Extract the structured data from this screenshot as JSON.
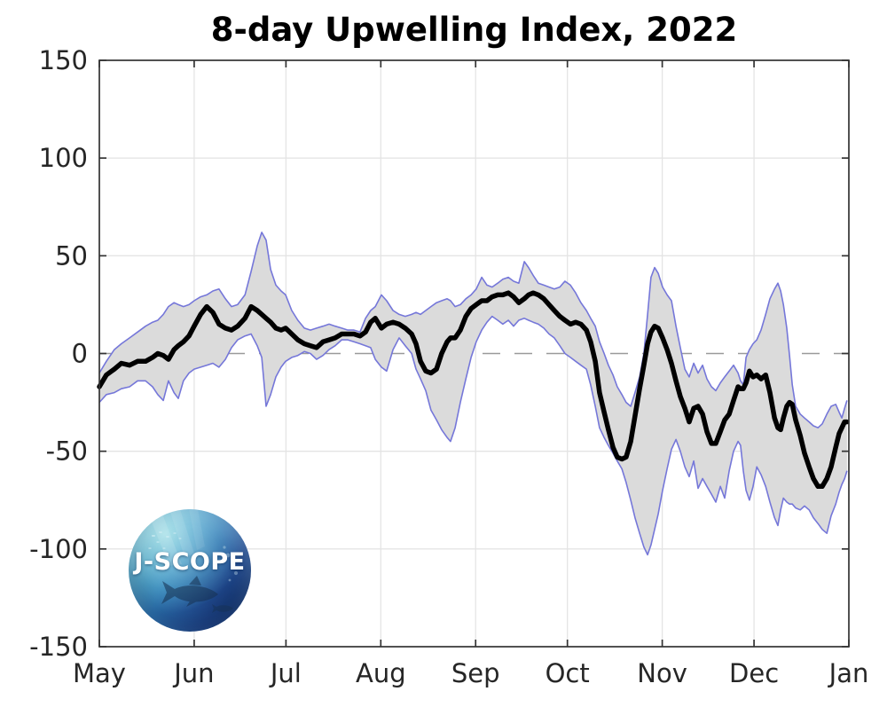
{
  "logo": {
    "text": "J-SCOPE"
  },
  "chart_data": {
    "type": "line",
    "title": "8-day Upwelling Index, 2022",
    "xlabel": "",
    "ylabel": "",
    "x_axis": {
      "unit": "days since May 1",
      "range": [
        0,
        245
      ],
      "tick_days": [
        0,
        31,
        61,
        92,
        123,
        153,
        184,
        214,
        245
      ],
      "tick_labels": [
        "May",
        "Jun",
        "Jul",
        "Aug",
        "Sep",
        "Oct",
        "Nov",
        "Dec",
        "Jan"
      ]
    },
    "y_axis": {
      "range": [
        -150,
        150
      ],
      "ticks": [
        -150,
        -100,
        -50,
        0,
        50,
        100,
        150
      ]
    },
    "grid": "on",
    "zero_line": "dashed",
    "legend": "none",
    "style": {
      "mean_color": "#000000",
      "mean_width": 5.5,
      "bound_color": "#7577d9",
      "bound_width": 1.6,
      "band_fill": "#dbdbdb",
      "grid_color": "#e4e4e4",
      "zero_color": "#9a9a9a",
      "axis_color": "#333333",
      "label_color": "#262626",
      "tick_len": 8
    },
    "days": [
      0,
      2.3,
      4.9,
      7.2,
      9.9,
      12.5,
      15.1,
      17.4,
      19.1,
      20.9,
      22.6,
      24.4,
      25.8,
      27.5,
      29.3,
      31,
      33.1,
      35.1,
      37.1,
      39.1,
      41.2,
      43.2,
      45.2,
      47.6,
      49.6,
      51.6,
      53.1,
      54.5,
      56,
      57.7,
      59.4,
      60.9,
      62.9,
      64.9,
      67,
      69,
      71,
      73.1,
      75.1,
      77.1,
      79.2,
      81.2,
      83.2,
      85.2,
      87,
      88.7,
      90.2,
      92.2,
      93.9,
      96,
      98,
      100,
      102.1,
      103.5,
      105,
      106.7,
      108.4,
      110.2,
      111.9,
      113.7,
      114.8,
      116.3,
      118,
      119.8,
      121.5,
      123.2,
      125,
      126.7,
      128.4,
      130.2,
      131.9,
      133.7,
      135.4,
      137.1,
      138.9,
      140.3,
      141.8,
      143.5,
      145.3,
      147,
      148.7,
      150.5,
      152.2,
      154,
      155.7,
      157.4,
      159.2,
      160.6,
      162.1,
      163.5,
      165,
      166.4,
      167.9,
      169.3,
      170.8,
      172.2,
      173.7,
      175.1,
      176.6,
      178,
      179.2,
      180.3,
      181.5,
      182.7,
      184.1,
      185.6,
      187,
      188.5,
      189.9,
      191.4,
      192.8,
      194.3,
      195.7,
      197.2,
      198.6,
      200.1,
      201.5,
      203,
      204.4,
      205.9,
      207.3,
      208.8,
      209.6,
      210.5,
      211.4,
      212.5,
      213.7,
      214.9,
      216.3,
      217.8,
      219.2,
      220.7,
      221.8,
      222.7,
      223.6,
      224.7,
      225.6,
      226.5,
      227.6,
      229.1,
      230.5,
      232,
      233.4,
      234.9,
      236.3,
      237.8,
      239.2,
      240.7,
      241.8,
      242.7,
      243.6,
      244.4
    ],
    "series": [
      {
        "name": "ensemble mean",
        "values": [
          -17,
          -11,
          -8,
          -5,
          -6,
          -4,
          -4,
          -2,
          0,
          -1,
          -3,
          2,
          4,
          6,
          9,
          14,
          20,
          24,
          21,
          15,
          13,
          12,
          14,
          18,
          24,
          22,
          20,
          18,
          16,
          13,
          12,
          13,
          10,
          7,
          5,
          4,
          3,
          6,
          7,
          8,
          10,
          10,
          10,
          9,
          11,
          16,
          18,
          13,
          15,
          16,
          15,
          13,
          10,
          5,
          -4,
          -9,
          -10,
          -8,
          0,
          6,
          8,
          8,
          12,
          19,
          23,
          25,
          27,
          27,
          29,
          30,
          30,
          31,
          29,
          26,
          28,
          30,
          31,
          30,
          28,
          25,
          22,
          19,
          17,
          15,
          16,
          15,
          12,
          6,
          -4,
          -20,
          -30,
          -39,
          -48,
          -53,
          -54,
          -53,
          -45,
          -32,
          -18,
          -6,
          5,
          11,
          14,
          13,
          8,
          2,
          -5,
          -14,
          -22,
          -28,
          -35,
          -28,
          -27,
          -31,
          -40,
          -46,
          -46,
          -40,
          -34,
          -31,
          -24,
          -17,
          -18,
          -18,
          -15,
          -9,
          -12,
          -11,
          -13,
          -11,
          -20,
          -33,
          -38,
          -39,
          -33,
          -27,
          -25,
          -26,
          -34,
          -42,
          -51,
          -58,
          -64,
          -68,
          -68,
          -64,
          -58,
          -48,
          -41,
          -38,
          -35,
          -35
        ]
      },
      {
        "name": "ensemble upper bound",
        "values": [
          -10,
          -4,
          2,
          5,
          8,
          11,
          14,
          16,
          17,
          20,
          24,
          26,
          25,
          24,
          25,
          27,
          29,
          30,
          32,
          33,
          28,
          24,
          25,
          30,
          42,
          55,
          62,
          58,
          43,
          35,
          32,
          30,
          22,
          17,
          13,
          12,
          13,
          14,
          15,
          14,
          13,
          12,
          12,
          11,
          18,
          22,
          24,
          30,
          27,
          22,
          20,
          19,
          20,
          21,
          20,
          22,
          24,
          26,
          27,
          28,
          27,
          24,
          25,
          28,
          30,
          33,
          39,
          35,
          34,
          36,
          38,
          39,
          37,
          36,
          47,
          44,
          40,
          36,
          35,
          34,
          33,
          34,
          37,
          35,
          31,
          26,
          22,
          18,
          14,
          6,
          0,
          -6,
          -11,
          -17,
          -21,
          -25,
          -27,
          -20,
          -12,
          0,
          20,
          39,
          44,
          41,
          34,
          30,
          27,
          14,
          3,
          -8,
          -12,
          -5,
          -10,
          -6,
          -13,
          -17,
          -19,
          -15,
          -12,
          -9,
          -6,
          -10,
          -14,
          -16,
          -2,
          2,
          5,
          7,
          12,
          20,
          28,
          33,
          36,
          32,
          25,
          13,
          -1,
          -16,
          -27,
          -31,
          -33,
          -35,
          -37,
          -38,
          -36,
          -31,
          -27,
          -26,
          -30,
          -33,
          -28,
          -24
        ]
      },
      {
        "name": "ensemble lower bound",
        "values": [
          -25,
          -21,
          -20,
          -18,
          -17,
          -14,
          -14,
          -17,
          -21,
          -24,
          -14,
          -20,
          -23,
          -14,
          -10,
          -8,
          -7,
          -6,
          -5,
          -7,
          -3,
          3,
          7,
          9,
          10,
          4,
          -2,
          -27,
          -21,
          -12,
          -7,
          -4,
          -2,
          -1,
          1,
          0,
          -3,
          -1,
          2,
          4,
          7,
          7,
          6,
          5,
          4,
          3,
          -3,
          -7,
          -9,
          2,
          8,
          4,
          0,
          -8,
          -13,
          -19,
          -29,
          -34,
          -39,
          -43,
          -45,
          -38,
          -25,
          -13,
          -2,
          6,
          12,
          16,
          19,
          17,
          15,
          17,
          14,
          17,
          18,
          17,
          16,
          15,
          13,
          10,
          8,
          4,
          0,
          -2,
          -4,
          -6,
          -8,
          -16,
          -27,
          -38,
          -43,
          -47,
          -51,
          -55,
          -59,
          -66,
          -75,
          -84,
          -92,
          -99,
          -103,
          -98,
          -90,
          -82,
          -70,
          -59,
          -49,
          -44,
          -50,
          -58,
          -63,
          -55,
          -69,
          -64,
          -68,
          -72,
          -76,
          -68,
          -74,
          -60,
          -50,
          -45,
          -47,
          -60,
          -70,
          -75,
          -68,
          -58,
          -62,
          -68,
          -76,
          -84,
          -88,
          -80,
          -74,
          -76,
          -77,
          -77,
          -79,
          -80,
          -78,
          -80,
          -84,
          -87,
          -90,
          -92,
          -83,
          -77,
          -71,
          -67,
          -64,
          -60
        ]
      }
    ]
  }
}
